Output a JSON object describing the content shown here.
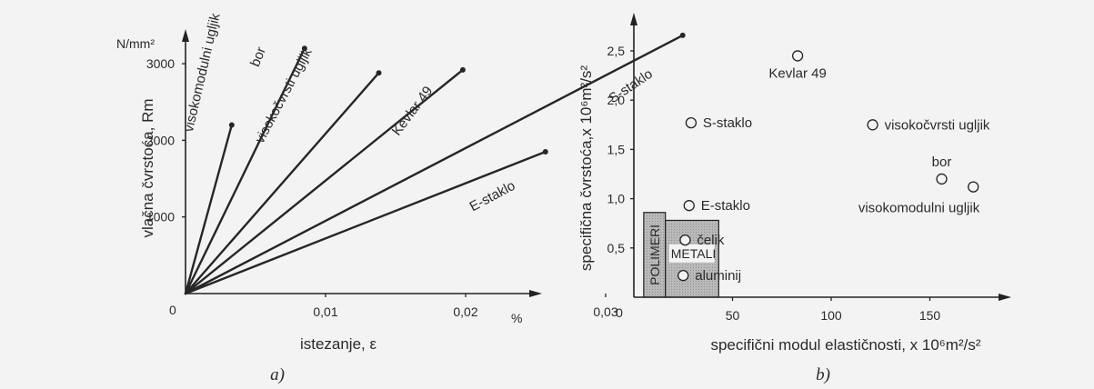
{
  "panels": {
    "a": "a)",
    "b": "b)"
  },
  "chart_data": [
    {
      "type": "line",
      "xlabel": "istezanje, ε",
      "ylabel": "vlačna čvrstoća, Rm",
      "xunit": "%",
      "yunit": "N/mm²",
      "xlim": [
        0,
        0.037
      ],
      "ylim": [
        0,
        3600
      ],
      "xticks": [
        {
          "value": 0,
          "label": "0"
        },
        {
          "value": 0.01,
          "label": "0,01"
        },
        {
          "value": 0.02,
          "label": "0,02"
        },
        {
          "value": 0.03,
          "label": "0,03"
        }
      ],
      "yticks": [
        {
          "value": 1000,
          "label": "1000"
        },
        {
          "value": 2000,
          "label": "2000"
        },
        {
          "value": 3000,
          "label": "3000"
        }
      ],
      "series": [
        {
          "name": "visokomodulni ugljik",
          "x": [
            0,
            0.0033
          ],
          "y": [
            0,
            2200
          ],
          "label_at": [
            0.0005,
            2100
          ],
          "label_angle": -77
        },
        {
          "name": "bor",
          "x": [
            0,
            0.0085
          ],
          "y": [
            0,
            3200
          ],
          "label_at": [
            0.0052,
            2950
          ],
          "label_angle": -68
        },
        {
          "name": "visokočvrsti ugljik",
          "x": [
            0,
            0.0138
          ],
          "y": [
            0,
            2880
          ],
          "label_at": [
            0.0055,
            1950
          ],
          "label_angle": -62
        },
        {
          "name": "Kevlar 49",
          "x": [
            0,
            0.0198
          ],
          "y": [
            0,
            2920
          ],
          "label_at": [
            0.0152,
            2050
          ],
          "label_angle": -53
        },
        {
          "name": "S-staklo",
          "x": [
            0,
            0.0355
          ],
          "y": [
            0,
            3370
          ],
          "label_at": [
            0.0305,
            2480
          ],
          "label_angle": -34
        },
        {
          "name": "E-staklo",
          "x": [
            0,
            0.0257
          ],
          "y": [
            0,
            1850
          ],
          "label_at": [
            0.0205,
            1070
          ],
          "label_angle": -28
        }
      ]
    },
    {
      "type": "scatter",
      "xlabel": "specifični modul elastičnosti, x 10⁶m²/s²",
      "ylabel": "specifična čvrstoća,x 10⁶m²/s²",
      "xlim": [
        0,
        185
      ],
      "ylim": [
        0,
        2.7
      ],
      "xticks": [
        {
          "value": 0,
          "label": "0"
        },
        {
          "value": 50,
          "label": "50"
        },
        {
          "value": 100,
          "label": "100"
        },
        {
          "value": 150,
          "label": "150"
        }
      ],
      "yticks": [
        {
          "value": 0.5,
          "label": "0,5"
        },
        {
          "value": 1.0,
          "label": "1,0"
        },
        {
          "value": 1.5,
          "label": "1,5"
        },
        {
          "value": 2.0,
          "label": "2,0"
        },
        {
          "value": 2.5,
          "label": "2,5"
        }
      ],
      "points": [
        {
          "label": "Kevlar 49",
          "x": 83,
          "y": 2.45,
          "label_pos": "below"
        },
        {
          "label": "S-staklo",
          "x": 29,
          "y": 1.77,
          "label_pos": "right"
        },
        {
          "label": "visokočvrsti ugljik",
          "x": 121,
          "y": 1.75,
          "label_pos": "right"
        },
        {
          "label": "bor",
          "x": 156,
          "y": 1.2,
          "label_pos": "above"
        },
        {
          "label": "visokomodulni ugljik",
          "x": 172,
          "y": 1.12,
          "label_pos": "below-left"
        },
        {
          "label": "E-staklo",
          "x": 28,
          "y": 0.93,
          "label_pos": "right"
        },
        {
          "label": "čelik",
          "x": 26,
          "y": 0.58,
          "label_pos": "right"
        },
        {
          "label": "aluminij",
          "x": 25,
          "y": 0.22,
          "label_pos": "right"
        }
      ],
      "regions": [
        {
          "label": "POLIMERI",
          "x": [
            5,
            16
          ],
          "y": [
            0,
            0.86
          ],
          "label_orientation": "vertical"
        },
        {
          "label": "METALI",
          "x": [
            16,
            43
          ],
          "y": [
            0,
            0.78
          ],
          "label_orientation": "horizontal"
        }
      ]
    }
  ]
}
